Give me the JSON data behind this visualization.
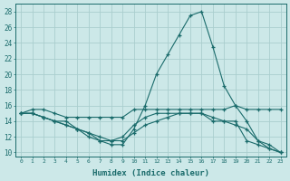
{
  "title": "",
  "xlabel": "Humidex (Indice chaleur)",
  "ylabel": "",
  "bg_color": "#cce8e8",
  "grid_color": "#aacece",
  "line_color": "#1a6b6b",
  "xlim": [
    -0.5,
    23.5
  ],
  "ylim": [
    9.5,
    29
  ],
  "xticks": [
    0,
    1,
    2,
    3,
    4,
    5,
    6,
    7,
    8,
    9,
    10,
    11,
    12,
    13,
    14,
    15,
    16,
    17,
    18,
    19,
    20,
    21,
    22,
    23
  ],
  "yticks": [
    10,
    12,
    14,
    16,
    18,
    20,
    22,
    24,
    26,
    28
  ],
  "series": [
    [
      15,
      15.5,
      15.5,
      15,
      14.5,
      14.5,
      14.5,
      14.5,
      14.5,
      14.5,
      15.5,
      15.5,
      15.5,
      15.5,
      15.5,
      15.5,
      15.5,
      15.5,
      15.5,
      16,
      15.5,
      15.5,
      15.5,
      15.5
    ],
    [
      15,
      15,
      14.5,
      14,
      14,
      13,
      12,
      11.5,
      11,
      11,
      13,
      16,
      20,
      22.5,
      25,
      27.5,
      28,
      23.5,
      18.5,
      16,
      14,
      11.5,
      11,
      10
    ],
    [
      15,
      15,
      14.5,
      14,
      13.5,
      13,
      12.5,
      12,
      11.5,
      11.5,
      12.5,
      13.5,
      14,
      14.5,
      15,
      15,
      15,
      14.5,
      14,
      13.5,
      13,
      11.5,
      10.5,
      10
    ],
    [
      15,
      15,
      14.5,
      14,
      13.5,
      13,
      12.5,
      11.5,
      11.5,
      12,
      13.5,
      14.5,
      15,
      15,
      15,
      15,
      15,
      14,
      14,
      14,
      11.5,
      11,
      10.5,
      10
    ]
  ]
}
